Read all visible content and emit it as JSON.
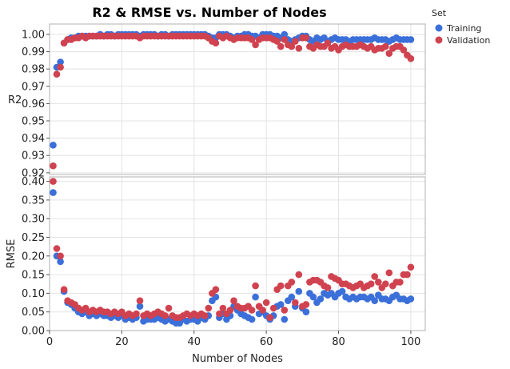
{
  "chart_data": {
    "type": "scatter",
    "title": "R2 & RMSE vs. Number of Nodes",
    "xlabel": "Number of Nodes",
    "xlim": [
      0,
      104
    ],
    "xticks": [
      0,
      20,
      40,
      60,
      80,
      100
    ],
    "grid": true,
    "legend": {
      "title": "Set",
      "placement": "top-right",
      "entries": [
        "Training",
        "Validation"
      ]
    },
    "colors": {
      "Training": "#3b6fd9",
      "Validation": "#d0424f"
    },
    "panels": [
      {
        "ylabel": "R2",
        "ylim": [
          0.919,
          1.006
        ],
        "yticks": [
          "0.92",
          "0.93",
          "0.94",
          "0.95",
          "0.96",
          "0.97",
          "0.98",
          "0.99",
          "1.00"
        ],
        "series": [
          {
            "name": "Training",
            "x": [
              1,
              2,
              3,
              4,
              5,
              6,
              7,
              8,
              9,
              10,
              11,
              12,
              13,
              14,
              15,
              16,
              17,
              18,
              19,
              20,
              21,
              22,
              23,
              24,
              25,
              26,
              27,
              28,
              29,
              30,
              31,
              32,
              33,
              34,
              35,
              36,
              37,
              38,
              39,
              40,
              41,
              42,
              43,
              44,
              45,
              46,
              47,
              48,
              49,
              50,
              51,
              52,
              53,
              54,
              55,
              56,
              57,
              58,
              59,
              60,
              61,
              62,
              63,
              64,
              65,
              66,
              67,
              68,
              69,
              70,
              71,
              72,
              73,
              74,
              75,
              76,
              77,
              78,
              79,
              80,
              81,
              82,
              83,
              84,
              85,
              86,
              87,
              88,
              89,
              90,
              91,
              92,
              93,
              94,
              95,
              96,
              97,
              98,
              99,
              100
            ],
            "y": [
              0.936,
              0.981,
              0.984,
              0.995,
              0.997,
              0.998,
              0.998,
              0.999,
              0.999,
              0.999,
              0.999,
              0.999,
              0.999,
              1.0,
              0.999,
              1.0,
              1.0,
              0.999,
              1.0,
              1.0,
              1.0,
              1.0,
              1.0,
              1.0,
              0.999,
              1.0,
              1.0,
              1.0,
              1.0,
              0.999,
              1.0,
              1.0,
              0.999,
              1.0,
              1.0,
              1.0,
              1.0,
              1.0,
              1.0,
              1.0,
              1.0,
              1.0,
              1.0,
              0.999,
              0.998,
              0.998,
              1.0,
              1.0,
              1.0,
              0.999,
              0.998,
              0.999,
              0.999,
              1.0,
              1.0,
              0.999,
              0.999,
              0.998,
              1.0,
              1.0,
              1.0,
              0.999,
              0.999,
              0.998,
              1.0,
              0.997,
              0.996,
              0.997,
              0.998,
              0.999,
              0.999,
              0.997,
              0.996,
              0.998,
              0.997,
              0.998,
              0.996,
              0.997,
              0.998,
              0.997,
              0.997,
              0.997,
              0.996,
              0.997,
              0.997,
              0.997,
              0.997,
              0.997,
              0.997,
              0.998,
              0.997,
              0.997,
              0.997,
              0.996,
              0.997,
              0.998,
              0.997,
              0.997,
              0.997,
              0.997
            ]
          },
          {
            "name": "Validation",
            "x": [
              1,
              2,
              3,
              4,
              5,
              6,
              7,
              8,
              9,
              10,
              11,
              12,
              13,
              14,
              15,
              16,
              17,
              18,
              19,
              20,
              21,
              22,
              23,
              24,
              25,
              26,
              27,
              28,
              29,
              30,
              31,
              32,
              33,
              34,
              35,
              36,
              37,
              38,
              39,
              40,
              41,
              42,
              43,
              44,
              45,
              46,
              47,
              48,
              49,
              50,
              51,
              52,
              53,
              54,
              55,
              56,
              57,
              58,
              59,
              60,
              61,
              62,
              63,
              64,
              65,
              66,
              67,
              68,
              69,
              70,
              71,
              72,
              73,
              74,
              75,
              76,
              77,
              78,
              79,
              80,
              81,
              82,
              83,
              84,
              85,
              86,
              87,
              88,
              89,
              90,
              91,
              92,
              93,
              94,
              95,
              96,
              97,
              98,
              99,
              100
            ],
            "y": [
              0.924,
              0.977,
              0.981,
              0.995,
              0.997,
              0.997,
              0.998,
              0.998,
              0.999,
              0.998,
              0.999,
              0.999,
              0.999,
              0.999,
              0.999,
              0.999,
              0.999,
              0.999,
              0.999,
              0.999,
              0.999,
              0.999,
              0.999,
              0.999,
              0.998,
              0.999,
              0.999,
              0.999,
              0.999,
              0.999,
              0.999,
              0.999,
              0.999,
              0.999,
              0.999,
              0.999,
              0.999,
              0.999,
              0.999,
              0.999,
              0.999,
              0.999,
              0.999,
              0.998,
              0.996,
              0.995,
              0.999,
              0.998,
              0.999,
              0.998,
              0.997,
              0.998,
              0.998,
              0.998,
              0.998,
              0.997,
              0.994,
              0.997,
              0.998,
              0.998,
              0.998,
              0.997,
              0.996,
              0.993,
              0.997,
              0.994,
              0.993,
              0.996,
              0.992,
              0.998,
              0.998,
              0.993,
              0.992,
              0.994,
              0.993,
              0.993,
              0.995,
              0.992,
              0.993,
              0.991,
              0.993,
              0.994,
              0.993,
              0.993,
              0.993,
              0.994,
              0.993,
              0.992,
              0.993,
              0.991,
              0.992,
              0.992,
              0.993,
              0.989,
              0.992,
              0.993,
              0.993,
              0.991,
              0.988,
              0.986
            ]
          }
        ]
      },
      {
        "ylabel": "RMSE",
        "ylim": [
          0,
          0.412
        ],
        "yticks": [
          "0.00",
          "0.05",
          "0.10",
          "0.15",
          "0.20",
          "0.25",
          "0.30",
          "0.35",
          "0.40"
        ],
        "series": [
          {
            "name": "Training",
            "x": [
              1,
              2,
              3,
              4,
              5,
              6,
              7,
              8,
              9,
              10,
              11,
              12,
              13,
              14,
              15,
              16,
              17,
              18,
              19,
              20,
              21,
              22,
              23,
              24,
              25,
              26,
              27,
              28,
              29,
              30,
              31,
              32,
              33,
              34,
              35,
              36,
              37,
              38,
              39,
              40,
              41,
              42,
              43,
              44,
              45,
              46,
              47,
              48,
              49,
              50,
              51,
              52,
              53,
              54,
              55,
              56,
              57,
              58,
              59,
              60,
              61,
              62,
              63,
              64,
              65,
              66,
              67,
              68,
              69,
              70,
              71,
              72,
              73,
              74,
              75,
              76,
              77,
              78,
              79,
              80,
              81,
              82,
              83,
              84,
              85,
              86,
              87,
              88,
              89,
              90,
              91,
              92,
              93,
              94,
              95,
              96,
              97,
              98,
              99,
              100
            ],
            "y": [
              0.37,
              0.2,
              0.185,
              0.105,
              0.075,
              0.07,
              0.06,
              0.05,
              0.045,
              0.05,
              0.04,
              0.045,
              0.04,
              0.045,
              0.04,
              0.04,
              0.035,
              0.04,
              0.035,
              0.04,
              0.03,
              0.035,
              0.03,
              0.035,
              0.065,
              0.025,
              0.03,
              0.03,
              0.03,
              0.035,
              0.03,
              0.025,
              0.03,
              0.025,
              0.02,
              0.02,
              0.03,
              0.025,
              0.03,
              0.03,
              0.025,
              0.035,
              0.03,
              0.04,
              0.08,
              0.09,
              0.035,
              0.045,
              0.03,
              0.04,
              0.065,
              0.055,
              0.045,
              0.04,
              0.035,
              0.03,
              0.09,
              0.045,
              0.05,
              0.04,
              0.03,
              0.04,
              0.065,
              0.07,
              0.03,
              0.08,
              0.09,
              0.065,
              0.105,
              0.06,
              0.05,
              0.1,
              0.09,
              0.075,
              0.085,
              0.1,
              0.095,
              0.1,
              0.09,
              0.1,
              0.105,
              0.09,
              0.085,
              0.09,
              0.085,
              0.09,
              0.09,
              0.085,
              0.09,
              0.08,
              0.095,
              0.085,
              0.085,
              0.08,
              0.09,
              0.095,
              0.085,
              0.085,
              0.08,
              0.085
            ]
          },
          {
            "name": "Validation",
            "x": [
              1,
              2,
              3,
              4,
              5,
              6,
              7,
              8,
              9,
              10,
              11,
              12,
              13,
              14,
              15,
              16,
              17,
              18,
              19,
              20,
              21,
              22,
              23,
              24,
              25,
              26,
              27,
              28,
              29,
              30,
              31,
              32,
              33,
              34,
              35,
              36,
              37,
              38,
              39,
              40,
              41,
              42,
              43,
              44,
              45,
              46,
              47,
              48,
              49,
              50,
              51,
              52,
              53,
              54,
              55,
              56,
              57,
              58,
              59,
              60,
              61,
              62,
              63,
              64,
              65,
              66,
              67,
              68,
              69,
              70,
              71,
              72,
              73,
              74,
              75,
              76,
              77,
              78,
              79,
              80,
              81,
              82,
              83,
              84,
              85,
              86,
              87,
              88,
              89,
              90,
              91,
              92,
              93,
              94,
              95,
              96,
              97,
              98,
              99,
              100
            ],
            "y": [
              0.4,
              0.22,
              0.2,
              0.11,
              0.08,
              0.075,
              0.07,
              0.06,
              0.055,
              0.06,
              0.05,
              0.055,
              0.05,
              0.055,
              0.05,
              0.05,
              0.045,
              0.05,
              0.045,
              0.05,
              0.04,
              0.045,
              0.04,
              0.045,
              0.08,
              0.04,
              0.045,
              0.04,
              0.045,
              0.05,
              0.045,
              0.04,
              0.06,
              0.04,
              0.035,
              0.035,
              0.04,
              0.045,
              0.04,
              0.045,
              0.04,
              0.045,
              0.04,
              0.06,
              0.1,
              0.11,
              0.045,
              0.06,
              0.045,
              0.055,
              0.08,
              0.065,
              0.06,
              0.06,
              0.065,
              0.055,
              0.12,
              0.065,
              0.055,
              0.075,
              0.035,
              0.06,
              0.11,
              0.12,
              0.055,
              0.12,
              0.13,
              0.075,
              0.15,
              0.065,
              0.07,
              0.13,
              0.135,
              0.135,
              0.13,
              0.12,
              0.115,
              0.145,
              0.14,
              0.135,
              0.125,
              0.125,
              0.12,
              0.115,
              0.12,
              0.125,
              0.115,
              0.12,
              0.125,
              0.145,
              0.13,
              0.115,
              0.125,
              0.155,
              0.12,
              0.13,
              0.13,
              0.15,
              0.15,
              0.17
            ]
          }
        ]
      }
    ]
  }
}
